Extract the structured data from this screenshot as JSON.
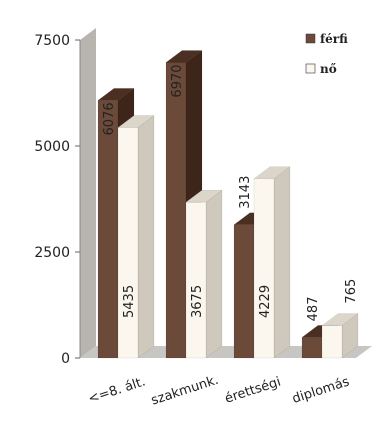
{
  "chart_data": {
    "type": "bar",
    "categories": [
      "<=8. ált.",
      "szakmunk.",
      "érettségi",
      "diplomás"
    ],
    "series": [
      {
        "name": "férfi",
        "values": [
          6076,
          6970,
          3143,
          487
        ]
      },
      {
        "name": "nő",
        "values": [
          5435,
          3675,
          4229,
          765
        ]
      }
    ],
    "ylim": [
      0,
      7500
    ],
    "yticks": [
      0,
      2500,
      5000,
      7500
    ],
    "grid": false,
    "legend": "top-right",
    "style": "3d"
  },
  "colors": {
    "ferfi_front": "#6b4a3a",
    "ferfi_top": "#4a2f22",
    "ferfi_side": "#3e2519",
    "no_front": "#fbf7ee",
    "no_top": "#dcd6ca",
    "no_side": "#cfc9bd",
    "wall": "#b8b5b0",
    "floor": "#c8c6c2"
  }
}
